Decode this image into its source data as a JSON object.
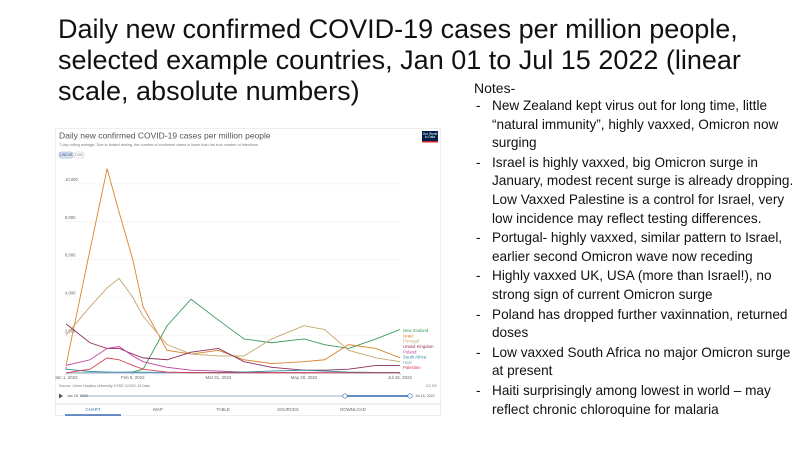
{
  "slide": {
    "title": "Daily new confirmed COVID-19 cases per million people, selected example countries, Jan 01 to Jul 15 2022 (linear scale, absolute numbers)",
    "notes_heading": "Notes-",
    "notes": [
      "New Zealand kept virus out for long time, little “natural immunity”, highly vaxxed, Omicron now surging",
      "Israel is highly vaxxed, big Omicron surge in January, modest recent surge is already dropping. Low Vaxxed Palestine is a control for Israel, very low incidence may reflect testing differences.",
      "Portugal- highly vaxxed, similar pattern to Israel, earlier second Omicron wave now receding",
      "Highly vaxxed UK, USA (more than Israel!), no strong sign of current Omicron surge",
      "Poland has dropped further vaxinnation, returned doses",
      "Low vaxxed South Africa no major Omicron surge at present",
      "Haiti surprisingly among lowest in world – may reflect chronic chloroquine for malaria"
    ]
  },
  "chart_data": {
    "type": "line",
    "title": "Daily new confirmed COVID-19 cases per million people",
    "subtitle": "7-day rolling average. Due to limited testing, the number of confirmed cases is lower than the true number of infections.",
    "scale_buttons": [
      "LINEAR",
      "LOG"
    ],
    "logo": "Our World in Data",
    "source": "Source: Johns Hopkins University CSSE COVID-19 Data",
    "license": "CC BY",
    "timeline": [
      "Jan 28, 2020",
      "Jul 15, 2022"
    ],
    "tabs": [
      "CHART",
      "MAP",
      "TABLE",
      "SOURCES",
      "DOWNLOAD"
    ],
    "x": [
      "Jan 1, 2022",
      "Jan 15, 2022",
      "Jan 25, 2022",
      "Feb 1, 2022",
      "Feb 9, 2022",
      "Feb 15, 2022",
      "Mar 1, 2022",
      "Mar 15, 2022",
      "Mar 31, 2022",
      "Apr 15, 2022",
      "May 1, 2022",
      "May 20, 2022",
      "Jun 1, 2022",
      "Jun 15, 2022",
      "Jul 1, 2022",
      "Jul 15, 2022"
    ],
    "xlim": [
      "Jan 1, 2022",
      "Jul 15, 2022"
    ],
    "xticks": [
      "Jan 1, 2022",
      "Feb 9, 2022",
      "Mar 31, 2022",
      "May 20, 2022",
      "Jul 15, 2022"
    ],
    "ylim": [
      0,
      11000
    ],
    "yticks": [
      0,
      {
        "value": 2000,
        "label": "2,000"
      },
      {
        "value": 4000,
        "label": "4,000"
      },
      {
        "value": 6000,
        "label": "6,000"
      },
      {
        "value": 8000,
        "label": "8,000"
      },
      {
        "value": 10000,
        "label": "10,000"
      }
    ],
    "grid": true,
    "series": [
      {
        "name": "New Zealand",
        "color": "#3a9a5b",
        "values": [
          5,
          10,
          15,
          20,
          50,
          200,
          2500,
          3900,
          2800,
          1800,
          1600,
          1800,
          1500,
          1300,
          1800,
          2300
        ]
      },
      {
        "name": "Israel",
        "color": "#d9822b",
        "values": [
          400,
          6500,
          10800,
          8500,
          6000,
          3500,
          1200,
          1000,
          1200,
          700,
          500,
          600,
          700,
          1500,
          1300,
          800
        ]
      },
      {
        "name": "Portugal",
        "color": "#c4a66a",
        "values": [
          2000,
          3500,
          4500,
          5000,
          4000,
          3000,
          1500,
          1000,
          900,
          900,
          1800,
          2500,
          2300,
          1200,
          800,
          600
        ]
      },
      {
        "name": "United Kingdom",
        "color": "#8e2f5c",
        "values": [
          2600,
          1600,
          1300,
          1300,
          1000,
          800,
          700,
          1100,
          1300,
          600,
          300,
          150,
          150,
          200,
          400,
          400
        ]
      },
      {
        "name": "Poland",
        "color": "#c13fa0",
        "values": [
          400,
          700,
          1300,
          1400,
          900,
          600,
          300,
          150,
          100,
          40,
          20,
          20,
          15,
          15,
          20,
          20
        ]
      },
      {
        "name": "South Africa",
        "color": "#2b8c9e",
        "values": [
          200,
          80,
          50,
          40,
          40,
          40,
          30,
          30,
          30,
          50,
          100,
          150,
          100,
          50,
          30,
          20
        ]
      },
      {
        "name": "Haiti",
        "color": "#8da0cb",
        "values": [
          5,
          10,
          10,
          8,
          6,
          5,
          4,
          3,
          3,
          3,
          3,
          3,
          3,
          3,
          3,
          3
        ]
      },
      {
        "name": "Palestine",
        "color": "#d6404e",
        "values": [
          10,
          200,
          800,
          700,
          400,
          200,
          50,
          20,
          10,
          10,
          10,
          10,
          10,
          10,
          10,
          10
        ]
      }
    ]
  }
}
